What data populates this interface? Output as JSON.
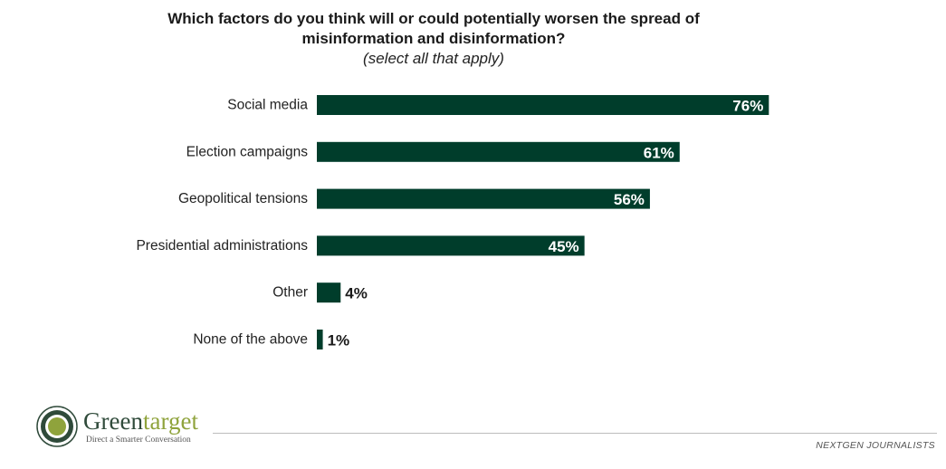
{
  "header": {
    "title_line1": "Which factors do you think will or could potentially worsen the spread of",
    "title_line2": "misinformation and disinformation?",
    "subtitle": "(select all that apply)"
  },
  "chart_data": {
    "type": "bar",
    "orientation": "horizontal",
    "title": "Which factors do you think will or could potentially worsen the spread of misinformation and disinformation?",
    "subtitle": "(select all that apply)",
    "categories": [
      "Social media",
      "Election campaigns",
      "Geopolitical tensions",
      "Presidential administrations",
      "Other",
      "None of the above"
    ],
    "values": [
      76,
      61,
      56,
      45,
      4,
      1
    ],
    "value_labels": [
      "76%",
      "61%",
      "56%",
      "45%",
      "4%",
      "1%"
    ],
    "unit": "%",
    "xlim": [
      0,
      100
    ],
    "grid": false,
    "bar_color": "#003d2b"
  },
  "branding": {
    "logo_name_part1": "Green",
    "logo_name_part2": "target",
    "logo_tagline": "Direct a Smarter Conversation",
    "source": "NEXTGEN JOURNALISTS"
  },
  "colors": {
    "bar": "#003d2b",
    "logo_dark": "#2f4a3a",
    "logo_accent": "#8fa33c"
  }
}
